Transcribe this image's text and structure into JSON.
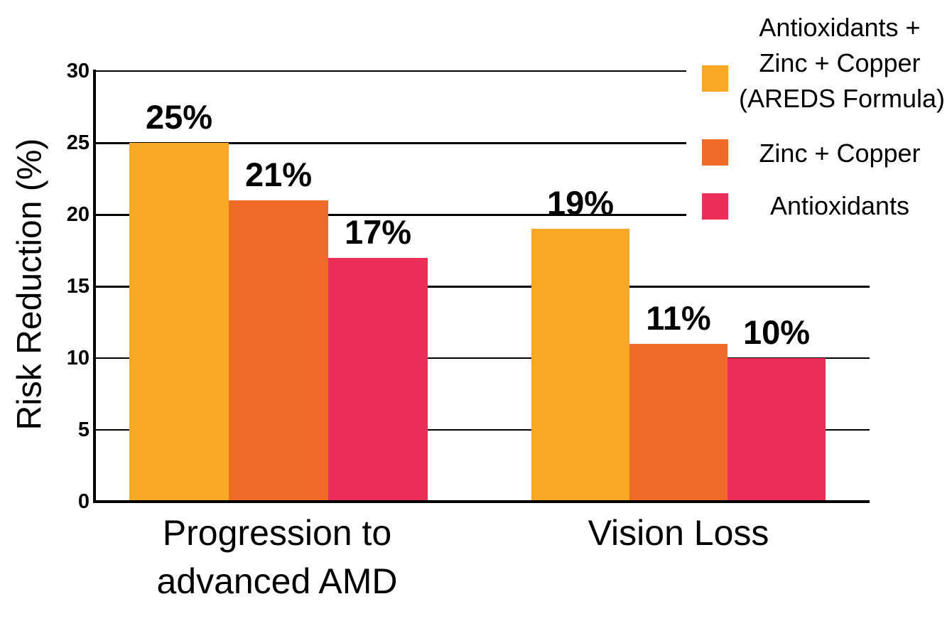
{
  "chart_data": {
    "type": "bar",
    "title": "",
    "xlabel": "",
    "ylabel": "Risk Reduction (%)",
    "ylim": [
      0,
      30
    ],
    "yticks": [
      0,
      5,
      10,
      15,
      20,
      25,
      30
    ],
    "grid": "horizontal",
    "legend_position": "top-right",
    "background_color": "#FFFFFF",
    "axis_color": "#000000",
    "categories": [
      "Progression to advanced AMD",
      "Vision Loss"
    ],
    "category_label_lines": [
      [
        "Progression to",
        "advanced AMD"
      ],
      [
        "Vision Loss"
      ]
    ],
    "series": [
      {
        "name": "Antioxidants + Zinc + Copper (AREDS Formula)",
        "legend_lines": [
          "Antioxidants +",
          "Zinc + Copper",
          "(AREDS Formula)"
        ],
        "color": "#F8A823",
        "values": [
          25,
          19
        ]
      },
      {
        "name": "Zinc + Copper",
        "legend_lines": [
          "Zinc + Copper"
        ],
        "color": "#F06B28",
        "values": [
          21,
          11
        ]
      },
      {
        "name": "Antioxidants",
        "legend_lines": [
          "Antioxidants"
        ],
        "color": "#ED2E58",
        "values": [
          17,
          10
        ]
      }
    ],
    "bar_labels": [
      [
        "25%",
        "21%",
        "17%"
      ],
      [
        "19%",
        "11%",
        "10%"
      ]
    ]
  }
}
